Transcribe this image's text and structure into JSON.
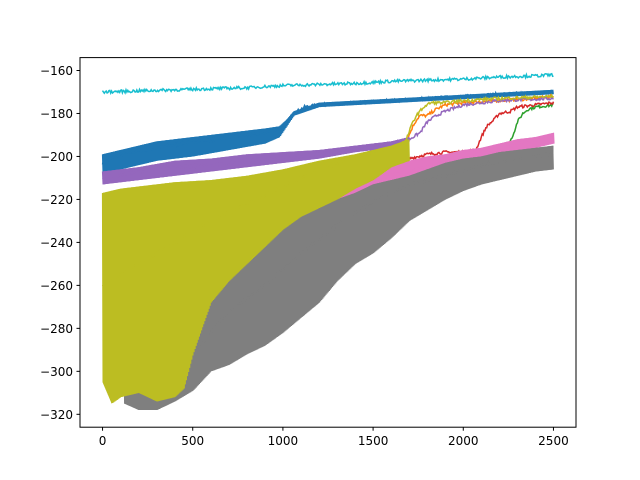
{
  "chart_data": {
    "type": "line",
    "title": "",
    "xlabel": "",
    "ylabel": "",
    "xlim": [
      -125,
      2625
    ],
    "ylim": [
      -326,
      -154
    ],
    "x_ticks": [
      0,
      500,
      1000,
      1500,
      2000,
      2500
    ],
    "y_ticks": [
      -320,
      -300,
      -280,
      -260,
      -240,
      -220,
      -200,
      -180,
      -160
    ],
    "x_tick_labels": [
      "0",
      "500",
      "1000",
      "1500",
      "2000",
      "2500"
    ],
    "y_tick_labels": [
      "−320",
      "−300",
      "−280",
      "−260",
      "−240",
      "−220",
      "−200",
      "−180",
      "−160"
    ],
    "grid": false,
    "legend": "none",
    "series": [
      {
        "color": "#1f77b4",
        "points": [
          [
            0,
            -203
          ],
          [
            100,
            -199
          ],
          [
            300,
            -196
          ],
          [
            500,
            -193
          ],
          [
            700,
            -191
          ],
          [
            900,
            -189
          ],
          [
            980,
            -187
          ],
          [
            1020,
            -184
          ],
          [
            1060,
            -180
          ],
          [
            1120,
            -177
          ],
          [
            1200,
            -176
          ],
          [
            1400,
            -175
          ],
          [
            1600,
            -174
          ],
          [
            1800,
            -173
          ],
          [
            2000,
            -172
          ],
          [
            2200,
            -171
          ],
          [
            2500,
            -170
          ]
        ],
        "band_low": [
          [
            0,
            -208
          ],
          [
            100,
            -206
          ],
          [
            300,
            -202
          ],
          [
            500,
            -200
          ],
          [
            700,
            -197
          ],
          [
            900,
            -194
          ],
          [
            980,
            -191
          ],
          [
            1020,
            -186
          ],
          [
            1060,
            -181
          ],
          [
            1200,
            -177
          ],
          [
            2500,
            -171
          ]
        ],
        "band_high": [
          [
            0,
            -199
          ],
          [
            100,
            -197
          ],
          [
            300,
            -193
          ],
          [
            500,
            -191
          ],
          [
            700,
            -189
          ],
          [
            900,
            -187
          ],
          [
            980,
            -186
          ],
          [
            1020,
            -183
          ],
          [
            1060,
            -179
          ],
          [
            1200,
            -175
          ],
          [
            2500,
            -169
          ]
        ]
      },
      {
        "color": "#ff7f0e",
        "points": [
          [
            1600,
            -195
          ],
          [
            1680,
            -193
          ],
          [
            1700,
            -190
          ],
          [
            1720,
            -186
          ],
          [
            1740,
            -183
          ],
          [
            1760,
            -181
          ],
          [
            1800,
            -181
          ],
          [
            1850,
            -178
          ],
          [
            1900,
            -176
          ],
          [
            2000,
            -175
          ],
          [
            2200,
            -174
          ],
          [
            2400,
            -173
          ],
          [
            2500,
            -172
          ]
        ]
      },
      {
        "color": "#2ca02c",
        "points": [
          [
            1780,
            -205
          ],
          [
            1850,
            -203
          ],
          [
            1900,
            -200
          ],
          [
            2000,
            -199
          ],
          [
            2100,
            -198
          ],
          [
            2200,
            -197
          ],
          [
            2260,
            -193
          ],
          [
            2280,
            -189
          ],
          [
            2300,
            -184
          ],
          [
            2330,
            -180
          ],
          [
            2360,
            -178
          ],
          [
            2400,
            -177
          ],
          [
            2500,
            -176
          ]
        ]
      },
      {
        "color": "#d62728",
        "points": [
          [
            1600,
            -203
          ],
          [
            1700,
            -201
          ],
          [
            1800,
            -199
          ],
          [
            1900,
            -198
          ],
          [
            2000,
            -198
          ],
          [
            2070,
            -197
          ],
          [
            2100,
            -191
          ],
          [
            2130,
            -186
          ],
          [
            2170,
            -183
          ],
          [
            2200,
            -180
          ],
          [
            2260,
            -179
          ],
          [
            2300,
            -177
          ],
          [
            2400,
            -176
          ],
          [
            2500,
            -175
          ]
        ]
      },
      {
        "color": "#9467bd",
        "points": [
          [
            0,
            -210
          ],
          [
            200,
            -207
          ],
          [
            400,
            -205
          ],
          [
            600,
            -204
          ],
          [
            800,
            -202
          ],
          [
            1000,
            -201
          ],
          [
            1200,
            -199
          ],
          [
            1400,
            -196
          ],
          [
            1600,
            -194
          ],
          [
            1700,
            -192
          ],
          [
            1760,
            -189
          ],
          [
            1800,
            -184
          ],
          [
            1850,
            -181
          ],
          [
            1900,
            -179
          ],
          [
            2000,
            -176
          ],
          [
            2100,
            -175
          ],
          [
            2200,
            -174
          ],
          [
            2500,
            -173
          ]
        ],
        "band_low": [
          [
            0,
            -213
          ],
          [
            200,
            -211
          ],
          [
            400,
            -209
          ],
          [
            600,
            -207
          ],
          [
            800,
            -205
          ],
          [
            1000,
            -203
          ],
          [
            1200,
            -201
          ],
          [
            1400,
            -198
          ],
          [
            1600,
            -196
          ],
          [
            1700,
            -193
          ]
        ],
        "band_high": [
          [
            0,
            -207
          ],
          [
            200,
            -205
          ],
          [
            400,
            -202
          ],
          [
            600,
            -201
          ],
          [
            800,
            -199
          ],
          [
            1000,
            -198
          ],
          [
            1200,
            -197
          ],
          [
            1400,
            -195
          ],
          [
            1600,
            -193
          ],
          [
            1700,
            -191
          ]
        ]
      },
      {
        "color": "#e377c2",
        "points": [
          [
            1000,
            -228
          ],
          [
            1100,
            -225
          ],
          [
            1200,
            -222
          ],
          [
            1300,
            -219
          ],
          [
            1400,
            -216
          ],
          [
            1500,
            -211
          ],
          [
            1600,
            -209
          ],
          [
            1700,
            -207
          ],
          [
            1800,
            -205
          ],
          [
            1900,
            -203
          ],
          [
            2000,
            -201
          ],
          [
            2100,
            -199
          ],
          [
            2200,
            -197
          ],
          [
            2300,
            -194
          ],
          [
            2400,
            -192
          ],
          [
            2500,
            -190
          ]
        ],
        "band_low": [
          [
            1000,
            -229
          ],
          [
            1100,
            -227
          ],
          [
            1200,
            -224
          ],
          [
            1300,
            -222
          ],
          [
            1400,
            -219
          ],
          [
            1500,
            -214
          ],
          [
            1600,
            -212
          ],
          [
            1700,
            -210
          ],
          [
            1800,
            -208
          ],
          [
            1900,
            -206
          ],
          [
            2000,
            -204
          ],
          [
            2100,
            -202
          ],
          [
            2200,
            -200
          ],
          [
            2300,
            -198
          ],
          [
            2400,
            -196
          ],
          [
            2500,
            -194
          ]
        ],
        "band_high": [
          [
            1000,
            -223
          ],
          [
            1100,
            -221
          ],
          [
            1200,
            -217
          ],
          [
            1300,
            -214
          ],
          [
            1400,
            -210
          ],
          [
            1500,
            -205
          ],
          [
            1600,
            -203
          ],
          [
            1700,
            -202
          ],
          [
            1800,
            -200
          ],
          [
            1900,
            -199
          ],
          [
            2000,
            -197
          ],
          [
            2100,
            -196
          ],
          [
            2200,
            -194
          ],
          [
            2300,
            -192
          ],
          [
            2400,
            -191
          ],
          [
            2500,
            -189
          ]
        ]
      },
      {
        "color": "#7f7f7f",
        "points": [
          [
            200,
            -305
          ],
          [
            300,
            -300
          ],
          [
            500,
            -292
          ],
          [
            700,
            -272
          ],
          [
            900,
            -260
          ],
          [
            1100,
            -245
          ],
          [
            1300,
            -232
          ],
          [
            1500,
            -221
          ],
          [
            1700,
            -213
          ],
          [
            1900,
            -209
          ],
          [
            2100,
            -204
          ],
          [
            2300,
            -201
          ],
          [
            2500,
            -199
          ]
        ],
        "band_low": [
          [
            120,
            -315
          ],
          [
            200,
            -318
          ],
          [
            300,
            -318
          ],
          [
            400,
            -314
          ],
          [
            500,
            -309
          ],
          [
            600,
            -300
          ],
          [
            700,
            -297
          ],
          [
            800,
            -292
          ],
          [
            900,
            -288
          ],
          [
            1000,
            -282
          ],
          [
            1100,
            -275
          ],
          [
            1200,
            -268
          ],
          [
            1300,
            -258
          ],
          [
            1400,
            -250
          ],
          [
            1500,
            -245
          ],
          [
            1600,
            -238
          ],
          [
            1700,
            -230
          ],
          [
            1800,
            -225
          ],
          [
            1900,
            -220
          ],
          [
            2000,
            -216
          ],
          [
            2100,
            -213
          ],
          [
            2200,
            -211
          ],
          [
            2300,
            -209
          ],
          [
            2400,
            -207
          ],
          [
            2500,
            -206
          ]
        ],
        "band_high": [
          [
            120,
            -304
          ],
          [
            200,
            -300
          ],
          [
            300,
            -295
          ],
          [
            400,
            -290
          ],
          [
            500,
            -272
          ],
          [
            600,
            -262
          ],
          [
            700,
            -252
          ],
          [
            800,
            -244
          ],
          [
            900,
            -236
          ],
          [
            1000,
            -230
          ],
          [
            1100,
            -228
          ],
          [
            1200,
            -224
          ],
          [
            1300,
            -220
          ],
          [
            1400,
            -217
          ],
          [
            1500,
            -213
          ],
          [
            1600,
            -211
          ],
          [
            1700,
            -209
          ],
          [
            1800,
            -206
          ],
          [
            1900,
            -203
          ],
          [
            2000,
            -201
          ],
          [
            2100,
            -200
          ],
          [
            2200,
            -198
          ],
          [
            2300,
            -197
          ],
          [
            2400,
            -196
          ],
          [
            2500,
            -195
          ]
        ]
      },
      {
        "color": "#bcbd22",
        "points": [
          [
            0,
            -260
          ],
          [
            200,
            -250
          ],
          [
            400,
            -240
          ],
          [
            600,
            -230
          ],
          [
            800,
            -222
          ],
          [
            1000,
            -214
          ],
          [
            1200,
            -206
          ],
          [
            1400,
            -200
          ],
          [
            1600,
            -196
          ],
          [
            1680,
            -193
          ],
          [
            1720,
            -184
          ],
          [
            1740,
            -181
          ],
          [
            1780,
            -177
          ],
          [
            1820,
            -175
          ],
          [
            1900,
            -175
          ],
          [
            2000,
            -174
          ],
          [
            2200,
            -173
          ],
          [
            2500,
            -172
          ]
        ],
        "band_low": [
          [
            0,
            -305
          ],
          [
            50,
            -315
          ],
          [
            100,
            -312
          ],
          [
            200,
            -310
          ],
          [
            300,
            -314
          ],
          [
            400,
            -312
          ],
          [
            450,
            -308
          ],
          [
            500,
            -292
          ],
          [
            550,
            -280
          ],
          [
            600,
            -268
          ],
          [
            700,
            -258
          ],
          [
            800,
            -250
          ],
          [
            900,
            -242
          ],
          [
            1000,
            -234
          ],
          [
            1100,
            -228
          ],
          [
            1200,
            -224
          ],
          [
            1300,
            -220
          ],
          [
            1400,
            -215
          ],
          [
            1500,
            -211
          ],
          [
            1600,
            -205
          ],
          [
            1700,
            -202
          ]
        ],
        "band_high": [
          [
            0,
            -217
          ],
          [
            100,
            -215
          ],
          [
            200,
            -214
          ],
          [
            400,
            -212
          ],
          [
            600,
            -211
          ],
          [
            800,
            -209
          ],
          [
            1000,
            -206
          ],
          [
            1200,
            -202
          ],
          [
            1400,
            -199
          ],
          [
            1500,
            -197
          ],
          [
            1600,
            -195
          ],
          [
            1700,
            -192
          ]
        ]
      },
      {
        "color": "#17becf",
        "points": [
          [
            0,
            -170
          ],
          [
            200,
            -169.5
          ],
          [
            400,
            -169
          ],
          [
            600,
            -168.5
          ],
          [
            800,
            -168
          ],
          [
            1000,
            -167
          ],
          [
            1200,
            -166.5
          ],
          [
            1400,
            -166
          ],
          [
            1600,
            -165
          ],
          [
            1800,
            -164.5
          ],
          [
            2000,
            -164
          ],
          [
            2200,
            -163
          ],
          [
            2400,
            -162.5
          ],
          [
            2500,
            -162
          ]
        ]
      }
    ]
  }
}
